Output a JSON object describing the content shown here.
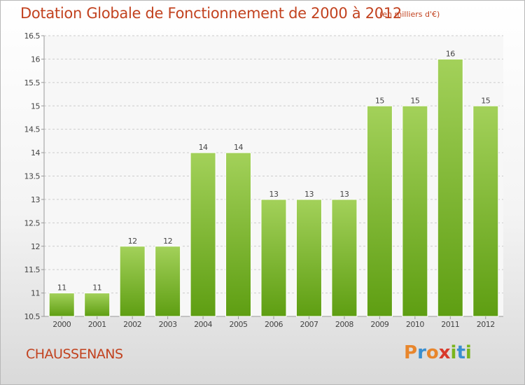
{
  "title": "Dotation Globale de Fonctionnement de 2000 à 2012",
  "subtitle": "(en milliers d'€)",
  "commune": "CHAUSSENANS",
  "logo": {
    "text": "Proxiti",
    "letters": [
      {
        "ch": "P",
        "color": "#e8862c"
      },
      {
        "ch": "r",
        "color": "#3a8fd0"
      },
      {
        "ch": "o",
        "color": "#e8862c"
      },
      {
        "ch": "x",
        "color": "#d8392b"
      },
      {
        "ch": "i",
        "color": "#7ab51d"
      },
      {
        "ch": "t",
        "color": "#3a8fd0"
      },
      {
        "ch": "i",
        "color": "#7ab51d"
      }
    ]
  },
  "colors": {
    "bar_top": "#a3d15a",
    "bar_bottom": "#5e9e12",
    "bar_stroke": "#ffffff",
    "title": "#c2421f"
  },
  "chart_data": {
    "type": "bar",
    "categories": [
      "2000",
      "2001",
      "2002",
      "2003",
      "2004",
      "2005",
      "2006",
      "2007",
      "2008",
      "2009",
      "2010",
      "2011",
      "2012"
    ],
    "values": [
      11,
      11,
      12,
      12,
      14,
      14,
      13,
      13,
      13,
      15,
      15,
      16,
      15
    ],
    "data_labels": [
      "11",
      "11",
      "12",
      "12",
      "14",
      "14",
      "13",
      "13",
      "13",
      "15",
      "15",
      "16",
      "15"
    ],
    "ylim": [
      10.5,
      16.5
    ],
    "yticks": [
      10.5,
      11,
      11.5,
      12,
      12.5,
      13,
      13.5,
      14,
      14.5,
      15,
      15.5,
      16,
      16.5
    ],
    "ytick_labels": [
      "10.5",
      "11",
      "11.5",
      "12",
      "12.5",
      "13",
      "13.5",
      "14",
      "14.5",
      "15",
      "15.5",
      "16",
      "16.5"
    ],
    "grid": true,
    "legend": "none"
  }
}
